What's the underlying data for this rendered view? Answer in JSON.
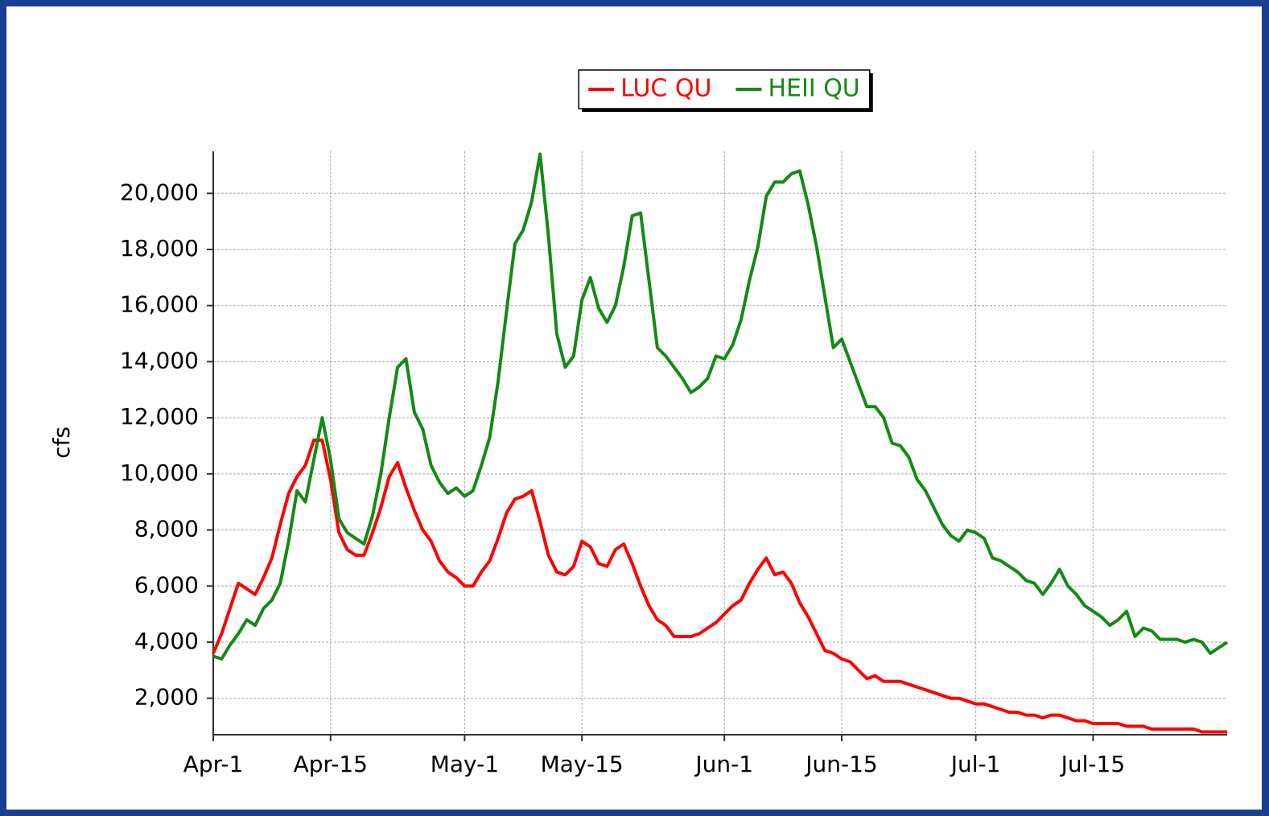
{
  "chart_data": {
    "type": "line",
    "ylabel": "cfs",
    "legend": "top",
    "grid": true,
    "x": [
      "04-01",
      "04-02",
      "04-03",
      "04-04",
      "04-05",
      "04-06",
      "04-07",
      "04-08",
      "04-09",
      "04-10",
      "04-11",
      "04-12",
      "04-13",
      "04-14",
      "04-15",
      "04-16",
      "04-17",
      "04-18",
      "04-19",
      "04-20",
      "04-21",
      "04-22",
      "04-23",
      "04-24",
      "04-25",
      "04-26",
      "04-27",
      "04-28",
      "04-29",
      "04-30",
      "05-01",
      "05-02",
      "05-03",
      "05-04",
      "05-05",
      "05-06",
      "05-07",
      "05-08",
      "05-09",
      "05-10",
      "05-11",
      "05-12",
      "05-13",
      "05-14",
      "05-15",
      "05-16",
      "05-17",
      "05-18",
      "05-19",
      "05-20",
      "05-21",
      "05-22",
      "05-23",
      "05-24",
      "05-25",
      "05-26",
      "05-27",
      "05-28",
      "05-29",
      "05-30",
      "05-31",
      "06-01",
      "06-02",
      "06-03",
      "06-04",
      "06-05",
      "06-06",
      "06-07",
      "06-08",
      "06-09",
      "06-10",
      "06-11",
      "06-12",
      "06-13",
      "06-14",
      "06-15",
      "06-16",
      "06-17",
      "06-18",
      "06-19",
      "06-20",
      "06-21",
      "06-22",
      "06-23",
      "06-24",
      "06-25",
      "06-26",
      "06-27",
      "06-28",
      "06-29",
      "06-30",
      "07-01",
      "07-02",
      "07-03",
      "07-04",
      "07-05",
      "07-06",
      "07-07",
      "07-08",
      "07-09",
      "07-10",
      "07-11",
      "07-12",
      "07-13",
      "07-14",
      "07-15",
      "07-16",
      "07-17",
      "07-18",
      "07-19",
      "07-20",
      "07-21",
      "07-22",
      "07-23",
      "07-24",
      "07-25",
      "07-26",
      "07-27",
      "07-28",
      "07-29",
      "07-30",
      "07-31"
    ],
    "xlim": [
      "04-01",
      "07-31"
    ],
    "xticks": [
      {
        "value": "04-01",
        "label": "Apr-1"
      },
      {
        "value": "04-15",
        "label": "Apr-15"
      },
      {
        "value": "05-01",
        "label": "May-1"
      },
      {
        "value": "05-15",
        "label": "May-15"
      },
      {
        "value": "06-01",
        "label": "Jun-1"
      },
      {
        "value": "06-15",
        "label": "Jun-15"
      },
      {
        "value": "07-01",
        "label": "Jul-1"
      },
      {
        "value": "07-15",
        "label": "Jul-15"
      }
    ],
    "ylim": [
      700,
      21500
    ],
    "yticks": [
      {
        "value": 2000,
        "label": "2,000"
      },
      {
        "value": 4000,
        "label": "4,000"
      },
      {
        "value": 6000,
        "label": "6,000"
      },
      {
        "value": 8000,
        "label": "8,000"
      },
      {
        "value": 10000,
        "label": "10,000"
      },
      {
        "value": 12000,
        "label": "12,000"
      },
      {
        "value": 14000,
        "label": "14,000"
      },
      {
        "value": 16000,
        "label": "16,000"
      },
      {
        "value": 18000,
        "label": "18,000"
      },
      {
        "value": 20000,
        "label": "20,000"
      }
    ],
    "series": [
      {
        "name": "LUC QU",
        "color": "#ff0000",
        "values": [
          3600,
          4300,
          5200,
          6100,
          5900,
          5700,
          6300,
          7000,
          8200,
          9300,
          9900,
          10300,
          11200,
          11200,
          9800,
          7900,
          7300,
          7100,
          7100,
          7900,
          8800,
          9900,
          10400,
          9500,
          8700,
          8000,
          7600,
          6900,
          6500,
          6300,
          6000,
          6000,
          6500,
          6900,
          7700,
          8600,
          9100,
          9200,
          9400,
          8300,
          7100,
          6500,
          6400,
          6700,
          7600,
          7400,
          6800,
          6700,
          7300,
          7500,
          6800,
          6000,
          5300,
          4800,
          4600,
          4200,
          4200,
          4200,
          4300,
          4500,
          4700,
          5000,
          5300,
          5500,
          6100,
          6600,
          7000,
          6400,
          6500,
          6100,
          5400,
          4900,
          4300,
          3700,
          3600,
          3400,
          3300,
          3000,
          2700,
          2800,
          2600,
          2600,
          2600,
          2500,
          2400,
          2300,
          2200,
          2100,
          2000,
          2000,
          1900,
          1800,
          1800,
          1700,
          1600,
          1500,
          1500,
          1400,
          1400,
          1300,
          1400,
          1400,
          1300,
          1200,
          1200,
          1100,
          1100,
          1100,
          1100,
          1000,
          1000,
          1000,
          900,
          900,
          900,
          900,
          900,
          900,
          800,
          800,
          800,
          800
        ]
      },
      {
        "name": "HEII QU",
        "color": "#138a13",
        "values": [
          3500,
          3400,
          3900,
          4300,
          4800,
          4600,
          5200,
          5500,
          6100,
          7600,
          9400,
          9000,
          10500,
          12000,
          10500,
          8400,
          7900,
          7700,
          7500,
          8500,
          10000,
          12000,
          13800,
          14100,
          12200,
          11600,
          10300,
          9700,
          9300,
          9500,
          9200,
          9400,
          10300,
          11300,
          13300,
          15800,
          18200,
          18700,
          19700,
          21400,
          18500,
          15000,
          13800,
          14200,
          16200,
          17000,
          15900,
          15400,
          16000,
          17400,
          19200,
          19300,
          16900,
          14500,
          14200,
          13800,
          13400,
          12900,
          13100,
          13400,
          14200,
          14100,
          14600,
          15500,
          16900,
          18100,
          19900,
          20400,
          20400,
          20700,
          20800,
          19600,
          18100,
          16300,
          14500,
          14800,
          14000,
          13200,
          12400,
          12400,
          12000,
          11100,
          11000,
          10600,
          9800,
          9400,
          8800,
          8200,
          7800,
          7600,
          8000,
          7900,
          7700,
          7000,
          6900,
          6700,
          6500,
          6200,
          6100,
          5700,
          6100,
          6600,
          6000,
          5700,
          5300,
          5100,
          4900,
          4600,
          4800,
          5100,
          4200,
          4500,
          4400,
          4100,
          4100,
          4100,
          4000,
          4100,
          4000,
          3600,
          3800,
          4000
        ]
      }
    ]
  }
}
